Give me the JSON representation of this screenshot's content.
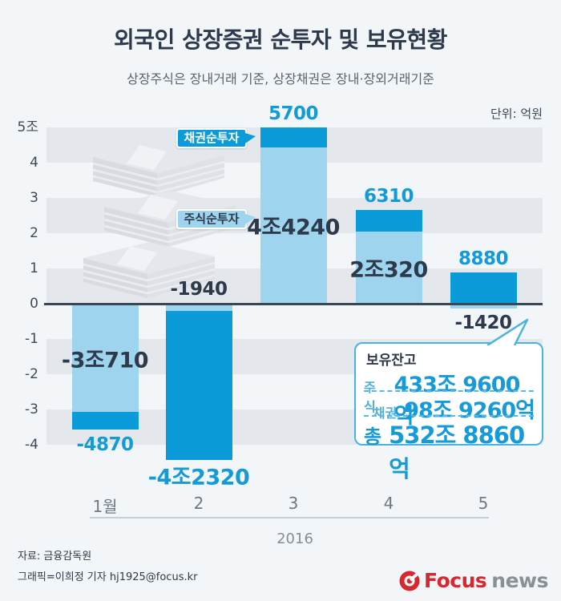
{
  "header": {
    "title": "외국인 상장증권 순투자 및 보유현황",
    "subtitle": "상장주식은 장내거래 기준, 상장채권은 장내·장외거래기준",
    "unit_label": "단위: 억원"
  },
  "chart_data": {
    "type": "bar",
    "stacked": true,
    "title": "외국인 상장증권 순투자 및 보유현황",
    "unit": "억원",
    "categories": [
      "1월",
      "2",
      "3",
      "4",
      "5"
    ],
    "x_axis_group_label": "2016",
    "ylim": [
      -4.6,
      5.2
    ],
    "grid": "alternating horizontal stripes",
    "y_ticks": [
      {
        "value": 5,
        "label": "5조"
      },
      {
        "value": 4,
        "label": "4"
      },
      {
        "value": 3,
        "label": "3"
      },
      {
        "value": 2,
        "label": "2"
      },
      {
        "value": 1,
        "label": "1"
      },
      {
        "value": 0,
        "label": "0"
      },
      {
        "value": -1,
        "label": "-1"
      },
      {
        "value": -2,
        "label": "-2"
      },
      {
        "value": -3,
        "label": "-3"
      },
      {
        "value": -4,
        "label": "-4"
      }
    ],
    "series": [
      {
        "name": "주식순투자",
        "color": "#9fd4ef",
        "values_eokwon": [
          -30710,
          -1940,
          44240,
          20320,
          -1420
        ],
        "labels": [
          "-3조710",
          "-1940",
          "4조4240",
          "2조320",
          "-1420"
        ]
      },
      {
        "name": "채권순투자",
        "color": "#0a9bd8",
        "values_eokwon": [
          -4870,
          -42320,
          5700,
          6310,
          8880
        ],
        "labels": [
          "-4870",
          "-4조2320",
          "5700",
          "6310",
          "8880"
        ]
      }
    ],
    "callouts": [
      {
        "label": "채권순투자",
        "style": "bond"
      },
      {
        "label": "주식순투자",
        "style": "stock"
      }
    ]
  },
  "balance_box": {
    "title": "보유잔고",
    "rows": [
      {
        "label": "주식",
        "value": "433조 9600억"
      },
      {
        "label": "채권",
        "value": "98조 9260억"
      }
    ],
    "total_label": "총",
    "total_value": "532조 8860억"
  },
  "footer": {
    "source": "자료: 금융감독원",
    "credit": "그래픽=이희정 기자 hj1925@focus.kr",
    "logo_primary": "Focus",
    "logo_secondary": "news"
  },
  "colors": {
    "bond_blue": "#0a9bd8",
    "stock_blue": "#9fd4ef",
    "value_text_blue": "#129bd8",
    "navy_text": "#2c3a4b",
    "stripe_gray": "#e4e8ec",
    "background": "#f3f6f9",
    "zero_line": "#3a4754",
    "logo_red": "#d7282f",
    "logo_gray": "#8b9096"
  }
}
